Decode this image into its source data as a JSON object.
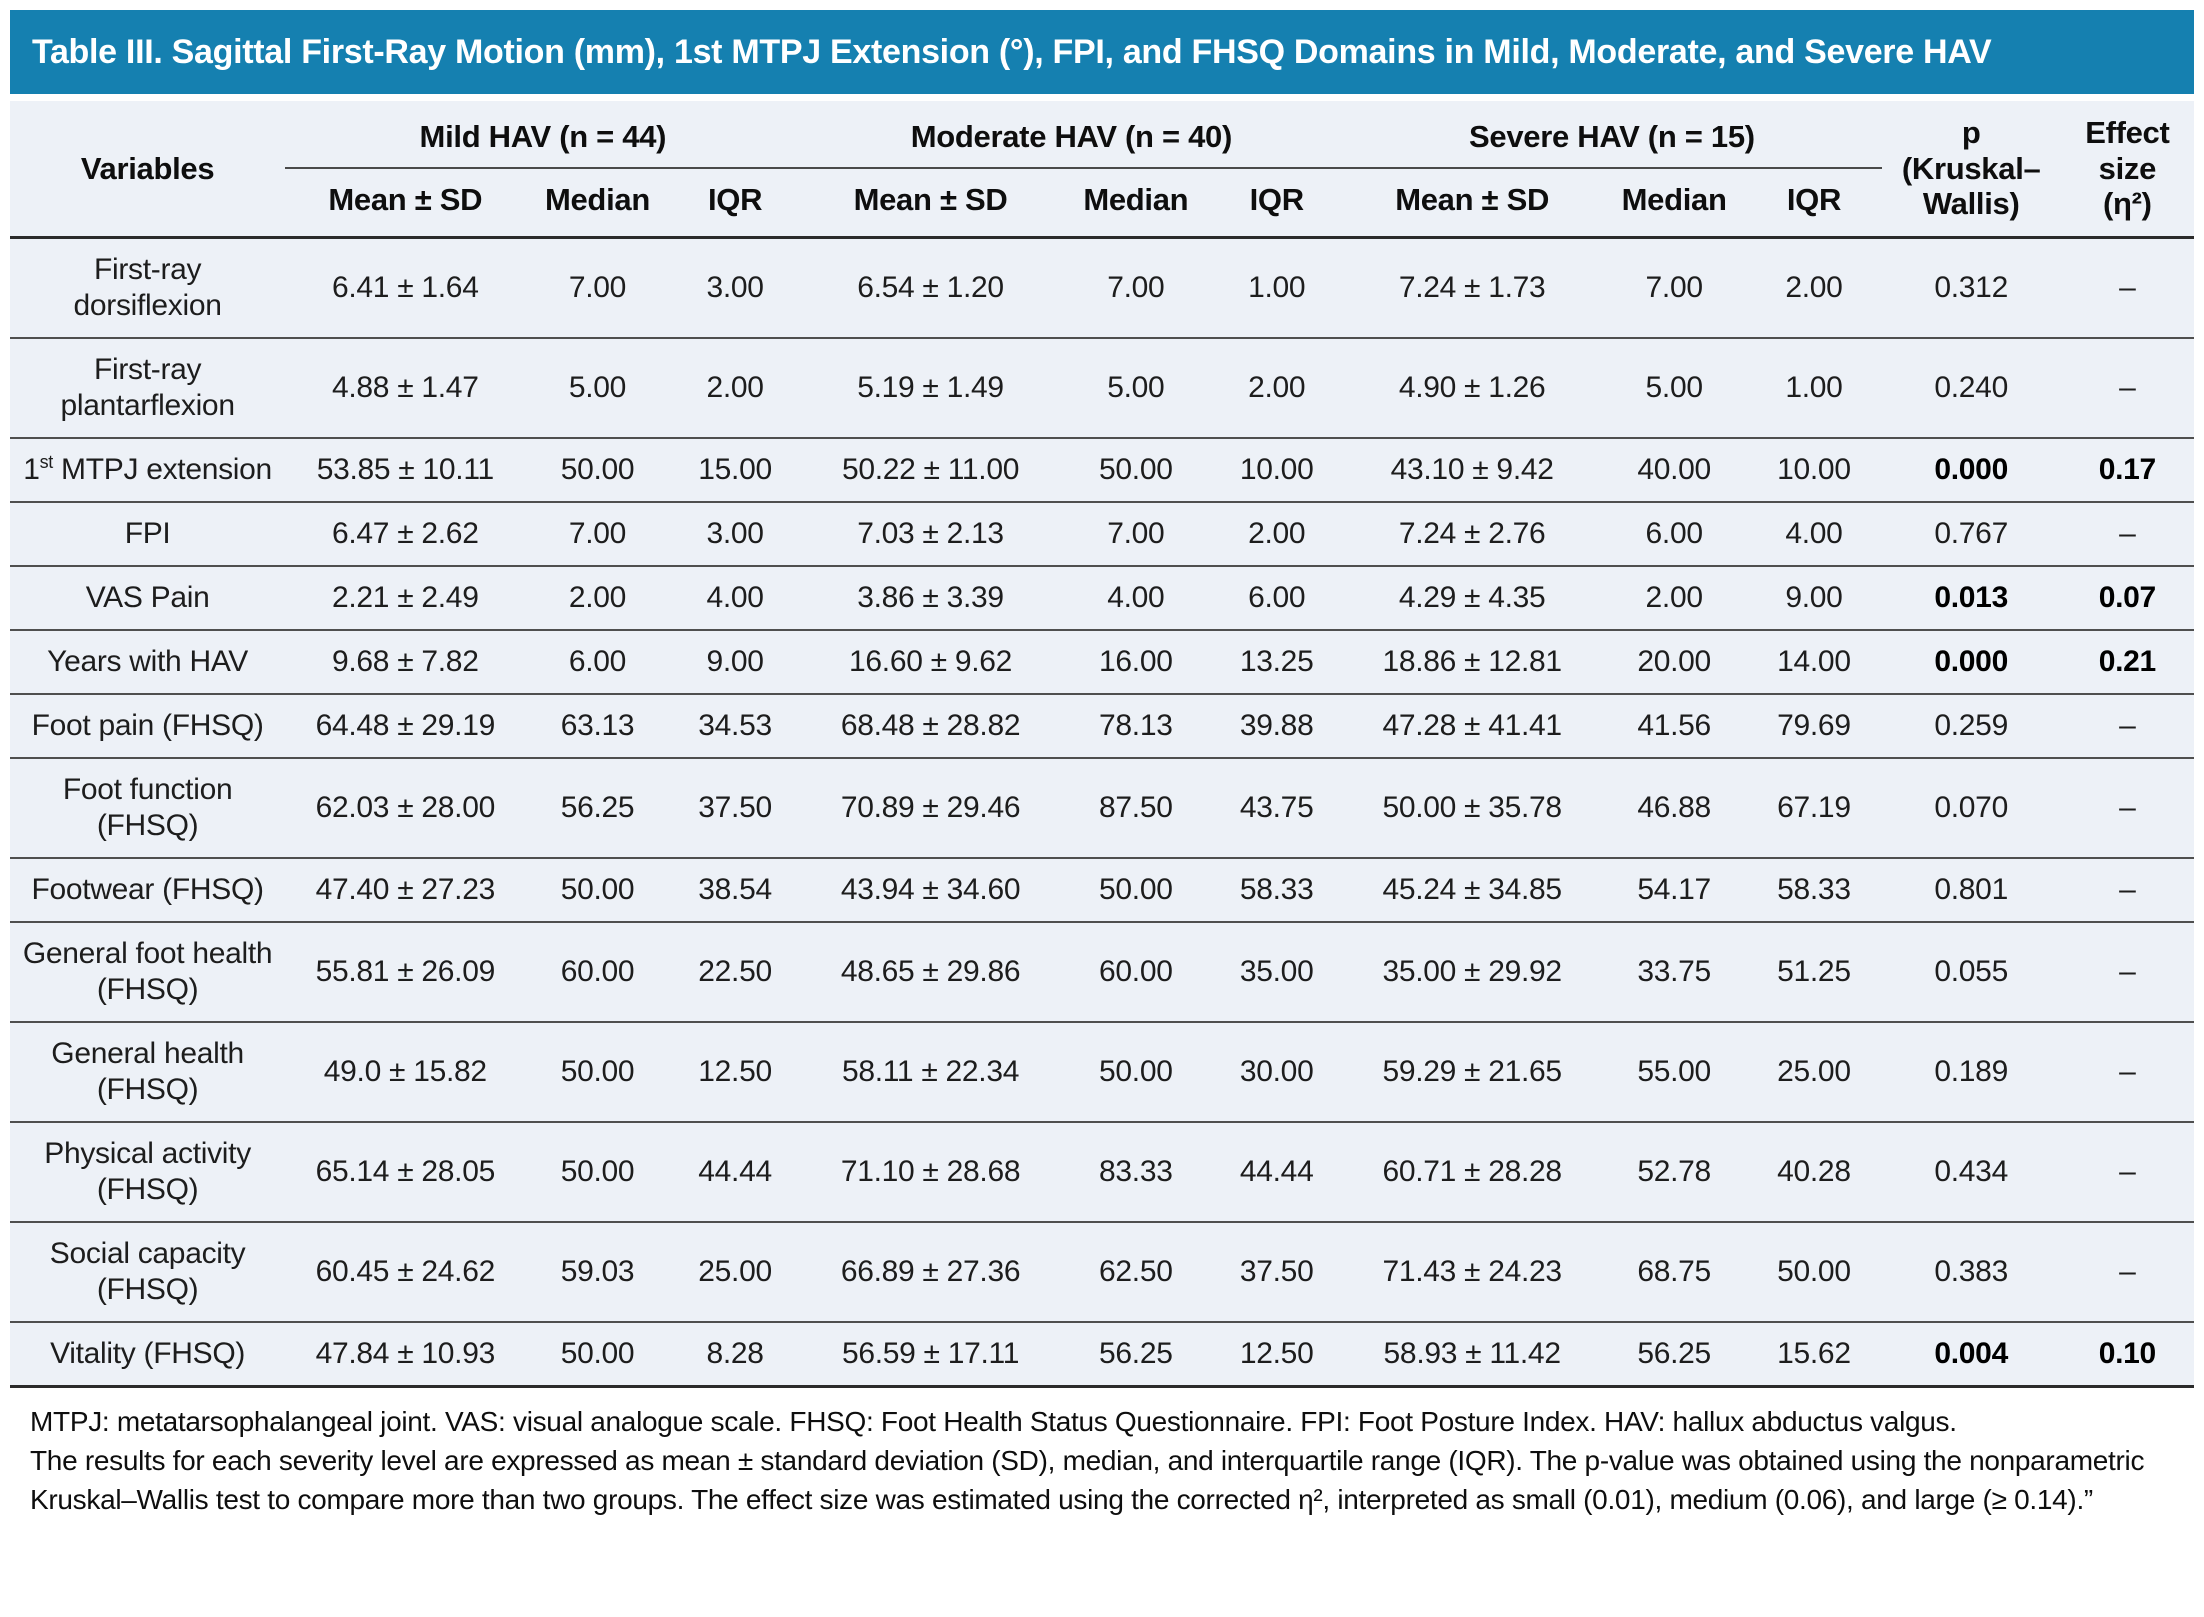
{
  "title": "Table III. Sagittal First-Ray Motion (mm), 1st MTPJ Extension (°), FPI, and FHSQ Domains in Mild, Moderate, and Severe HAV",
  "colors": {
    "accent_teal": "#1580b0",
    "table_background": "#edf1f7",
    "row_divider": "#4f4f4f"
  },
  "header": {
    "variables_label": "Variables",
    "groups": [
      {
        "label": "Mild HAV (n = 44)"
      },
      {
        "label": "Moderate HAV (n = 40)"
      },
      {
        "label": "Severe HAV (n = 15)"
      }
    ],
    "stat_labels": [
      "Mean ± SD",
      "Median",
      "IQR"
    ],
    "p_label": "p\n(Kruskal–\nWallis)",
    "effect_label": "Effect\nsize\n(η²)"
  },
  "rows": [
    {
      "variable": "First-ray dorsiflexion",
      "mild": [
        "6.41 ± 1.64",
        "7.00",
        "3.00"
      ],
      "moderate": [
        "6.54 ± 1.20",
        "7.00",
        "1.00"
      ],
      "severe": [
        "7.24 ± 1.73",
        "7.00",
        "2.00"
      ],
      "p": "0.312",
      "effect": "–",
      "significant": false
    },
    {
      "variable": "First-ray plantarflexion",
      "mild": [
        "4.88 ± 1.47",
        "5.00",
        "2.00"
      ],
      "moderate": [
        "5.19 ± 1.49",
        "5.00",
        "2.00"
      ],
      "severe": [
        "4.90 ± 1.26",
        "5.00",
        "1.00"
      ],
      "p": "0.240",
      "effect": "–",
      "significant": false
    },
    {
      "variable": "1st MTPJ extension",
      "mild": [
        "53.85 ± 10.11",
        "50.00",
        "15.00"
      ],
      "moderate": [
        "50.22 ± 11.00",
        "50.00",
        "10.00"
      ],
      "severe": [
        "43.10 ± 9.42",
        "40.00",
        "10.00"
      ],
      "p": "0.000",
      "effect": "0.17",
      "significant": true
    },
    {
      "variable": "FPI",
      "mild": [
        "6.47 ± 2.62",
        "7.00",
        "3.00"
      ],
      "moderate": [
        "7.03 ± 2.13",
        "7.00",
        "2.00"
      ],
      "severe": [
        "7.24 ± 2.76",
        "6.00",
        "4.00"
      ],
      "p": "0.767",
      "effect": "–",
      "significant": false
    },
    {
      "variable": "VAS Pain",
      "mild": [
        "2.21 ± 2.49",
        "2.00",
        "4.00"
      ],
      "moderate": [
        "3.86 ± 3.39",
        "4.00",
        "6.00"
      ],
      "severe": [
        "4.29 ± 4.35",
        "2.00",
        "9.00"
      ],
      "p": "0.013",
      "effect": "0.07",
      "significant": true
    },
    {
      "variable": "Years with HAV",
      "mild": [
        "9.68 ± 7.82",
        "6.00",
        "9.00"
      ],
      "moderate": [
        "16.60 ± 9.62",
        "16.00",
        "13.25"
      ],
      "severe": [
        "18.86 ± 12.81",
        "20.00",
        "14.00"
      ],
      "p": "0.000",
      "effect": "0.21",
      "significant": true
    },
    {
      "variable": "Foot pain (FHSQ)",
      "mild": [
        "64.48 ± 29.19",
        "63.13",
        "34.53"
      ],
      "moderate": [
        "68.48 ± 28.82",
        "78.13",
        "39.88"
      ],
      "severe": [
        "47.28 ± 41.41",
        "41.56",
        "79.69"
      ],
      "p": "0.259",
      "effect": "–",
      "significant": false
    },
    {
      "variable": "Foot function (FHSQ)",
      "mild": [
        "62.03 ± 28.00",
        "56.25",
        "37.50"
      ],
      "moderate": [
        "70.89 ± 29.46",
        "87.50",
        "43.75"
      ],
      "severe": [
        "50.00 ± 35.78",
        "46.88",
        "67.19"
      ],
      "p": "0.070",
      "effect": "–",
      "significant": false
    },
    {
      "variable": "Footwear (FHSQ)",
      "mild": [
        "47.40 ± 27.23",
        "50.00",
        "38.54"
      ],
      "moderate": [
        "43.94 ± 34.60",
        "50.00",
        "58.33"
      ],
      "severe": [
        "45.24 ± 34.85",
        "54.17",
        "58.33"
      ],
      "p": "0.801",
      "effect": "–",
      "significant": false
    },
    {
      "variable": "General foot health (FHSQ)",
      "mild": [
        "55.81 ± 26.09",
        "60.00",
        "22.50"
      ],
      "moderate": [
        "48.65 ± 29.86",
        "60.00",
        "35.00"
      ],
      "severe": [
        "35.00 ± 29.92",
        "33.75",
        "51.25"
      ],
      "p": "0.055",
      "effect": "–",
      "significant": false
    },
    {
      "variable": "General health (FHSQ)",
      "mild": [
        "49.0 ± 15.82",
        "50.00",
        "12.50"
      ],
      "moderate": [
        "58.11 ± 22.34",
        "50.00",
        "30.00"
      ],
      "severe": [
        "59.29 ± 21.65",
        "55.00",
        "25.00"
      ],
      "p": "0.189",
      "effect": "–",
      "significant": false
    },
    {
      "variable": "Physical activity (FHSQ)",
      "mild": [
        "65.14 ± 28.05",
        "50.00",
        "44.44"
      ],
      "moderate": [
        "71.10 ± 28.68",
        "83.33",
        "44.44"
      ],
      "severe": [
        "60.71 ± 28.28",
        "52.78",
        "40.28"
      ],
      "p": "0.434",
      "effect": "–",
      "significant": false
    },
    {
      "variable": "Social capacity (FHSQ)",
      "mild": [
        "60.45 ± 24.62",
        "59.03",
        "25.00"
      ],
      "moderate": [
        "66.89 ± 27.36",
        "62.50",
        "37.50"
      ],
      "severe": [
        "71.43 ± 24.23",
        "68.75",
        "50.00"
      ],
      "p": "0.383",
      "effect": "–",
      "significant": false
    },
    {
      "variable": "Vitality (FHSQ)",
      "mild": [
        "47.84 ± 10.93",
        "50.00",
        "8.28"
      ],
      "moderate": [
        "56.59 ± 17.11",
        "56.25",
        "12.50"
      ],
      "severe": [
        "58.93 ± 11.42",
        "56.25",
        "15.62"
      ],
      "p": "0.004",
      "effect": "0.10",
      "significant": true
    }
  ],
  "footnotes": {
    "abbreviations": "MTPJ: metatarsophalangeal joint. VAS: visual analogue scale. FHSQ: Foot Health Status Questionnaire. FPI: Foot Posture Index. HAV: hallux abductus valgus.",
    "methods": "The results for each severity level are expressed as mean ± standard deviation (SD), median, and interquartile range (IQR). The p-value was obtained using the nonparametric Kruskal–Wallis test to compare more than two groups. The effect size was estimated using the corrected η², interpreted as small (0.01), medium (0.06), and large (≥ 0.14).”"
  }
}
